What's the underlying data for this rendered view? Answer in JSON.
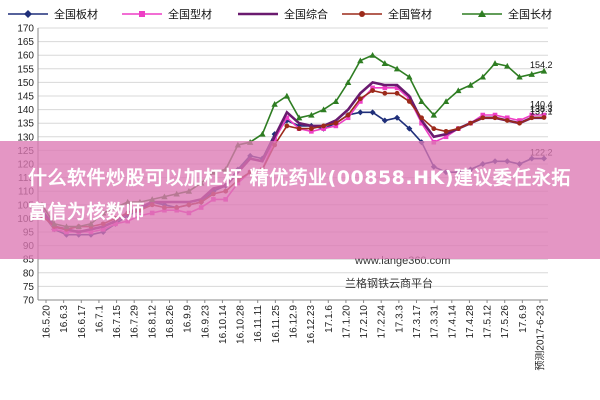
{
  "chart_data": {
    "type": "line",
    "title": "",
    "xlabel": "",
    "ylabel": "",
    "ylim": [
      70,
      170
    ],
    "yticks": [
      70,
      75,
      80,
      85,
      90,
      95,
      100,
      105,
      110,
      115,
      120,
      125,
      130,
      135,
      140,
      145,
      150,
      155,
      160,
      165,
      170
    ],
    "x_tick_labels": [
      "16.5.20",
      "16.6.3",
      "16.6.17",
      "16.7.1",
      "16.7.15",
      "16.7.29",
      "16.8.12",
      "16.8.26",
      "16.9.9",
      "16.9.23",
      "16.10.14",
      "16.10.28",
      "16.11.11",
      "16.11.25",
      "16.12.9",
      "16.12.23",
      "17.1.6",
      "17.1.20",
      "17.2.10",
      "17.2.24",
      "17.3.3",
      "17.3.17",
      "17.3.31",
      "17.4.14",
      "17.4.28",
      "17.5.12",
      "17.5.26",
      "17.6.9",
      "预测2017-6-23"
    ],
    "grid": true,
    "legend_position": "top",
    "series": [
      {
        "name": "全国板材",
        "color": "#1f2f7a",
        "marker": "diamond",
        "end_label": "122.2",
        "values": [
          102,
          96,
          94,
          94,
          94,
          95,
          98,
          101,
          103,
          106,
          105,
          104,
          105,
          106,
          110,
          112,
          118,
          123,
          122,
          131,
          136,
          134,
          134,
          133,
          135,
          138,
          139,
          139,
          136,
          137,
          133,
          128,
          119,
          117,
          117,
          118,
          120,
          121,
          121,
          120,
          122,
          122
        ]
      },
      {
        "name": "全国型材",
        "color": "#ee3ec5",
        "marker": "square",
        "end_label": "138.3",
        "values": [
          103,
          96,
          95,
          95,
          95,
          96,
          98,
          99,
          101,
          102,
          103,
          103,
          102,
          104,
          107,
          107,
          113,
          117,
          118,
          129,
          137,
          133,
          132,
          133,
          134,
          137,
          143,
          148,
          148,
          148,
          144,
          135,
          128,
          130,
          133,
          135,
          138,
          138,
          137,
          136,
          138,
          138
        ]
      },
      {
        "name": "全国综合",
        "color": "#6a1a6f",
        "marker": "none",
        "end_label": "",
        "values": [
          103,
          97,
          96,
          95,
          96,
          97,
          99,
          102,
          104,
          106,
          106,
          106,
          106,
          107,
          111,
          112,
          117,
          122,
          121,
          130,
          139,
          135,
          134,
          134,
          136,
          140,
          146,
          150,
          149,
          149,
          145,
          136,
          130,
          131,
          133,
          135,
          137,
          137,
          136,
          135,
          137,
          137
        ]
      },
      {
        "name": "全国管材",
        "color": "#9c2a1a",
        "marker": "circle",
        "end_label": "137.1",
        "values": [
          101,
          97,
          96,
          97,
          97,
          98,
          100,
          102,
          103,
          105,
          104,
          104,
          105,
          106,
          109,
          110,
          114,
          117,
          118,
          127,
          134,
          133,
          133,
          134,
          135,
          138,
          144,
          147,
          146,
          146,
          143,
          137,
          133,
          132,
          133,
          135,
          137,
          137,
          136,
          135,
          137,
          137.1
        ]
      },
      {
        "name": "全国长材",
        "color": "#2e7d22",
        "marker": "triangle",
        "end_label": "154.2",
        "values": [
          105,
          98,
          97,
          97,
          98,
          102,
          104,
          106,
          106,
          107,
          108,
          109,
          110,
          113,
          117,
          118,
          127,
          128,
          131,
          142,
          145,
          137,
          138,
          140,
          143,
          150,
          158,
          160,
          157,
          155,
          152,
          143,
          138,
          143,
          147,
          149,
          152,
          157,
          156,
          152,
          153,
          154.2
        ]
      }
    ],
    "series_end_labels_extra": [
      "140.4"
    ]
  },
  "watermark": {
    "url": "www.lange360.com",
    "platform": "兰格钢铁云商平台"
  },
  "banner": {
    "text": "什么软件炒股可以加杠杆 精优药业(00858.HK)建议委任永拓富信为核数师"
  }
}
